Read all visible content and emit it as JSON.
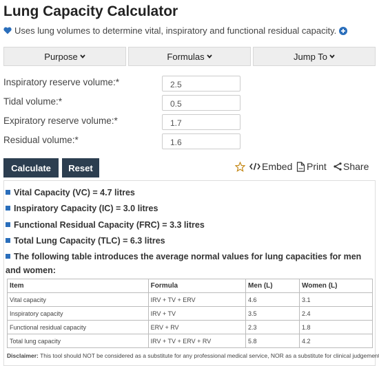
{
  "header": {
    "title": "Lung Capacity Calculator",
    "subtitle": "Uses lung volumes to determine vital, inspiratory and functional residual capacity."
  },
  "tabs": [
    "Purpose",
    "Formulas",
    "Jump To"
  ],
  "form": {
    "fields": [
      {
        "label": "Inspiratory reserve volume:*",
        "value": "2.5"
      },
      {
        "label": "Tidal volume:*",
        "value": "0.5"
      },
      {
        "label": "Expiratory reserve volume:*",
        "value": "1.7"
      },
      {
        "label": "Residual volume:*",
        "value": "1.6"
      }
    ],
    "buttons": [
      "Calculate",
      "Reset"
    ]
  },
  "actions": [
    "Embed",
    "Print",
    "Share"
  ],
  "results": [
    "Vital Capacity (VC) = 4.7 litres",
    "Inspiratory Capacity (IC) = 3.0 litres",
    "Functional Residual Capacity (FRC) = 3.3 litres",
    "Total Lung Capacity (TLC) = 6.3 litres",
    "The following table introduces the average normal values for lung capacities for men and women:"
  ],
  "table": {
    "header": [
      "Item",
      "Formula",
      "Men (L)",
      "Women (L)"
    ],
    "rows": [
      [
        "Vital capacity",
        "IRV + TV + ERV",
        "4.6",
        "3.1"
      ],
      [
        "Inspiratory capacity",
        "IRV + TV",
        "3.5",
        "2.4"
      ],
      [
        "Functional residual capacity",
        "ERV + RV",
        "2.3",
        "1.8"
      ],
      [
        "Total lung capacity",
        "IRV + TV + ERV + RV",
        "5.8",
        "4.2"
      ]
    ]
  },
  "disclaimer": {
    "label": "Disclaimer:",
    "text": "This tool should NOT be considered as a substitute for any professional medical service, NOR as a substitute for clinical judgement."
  }
}
